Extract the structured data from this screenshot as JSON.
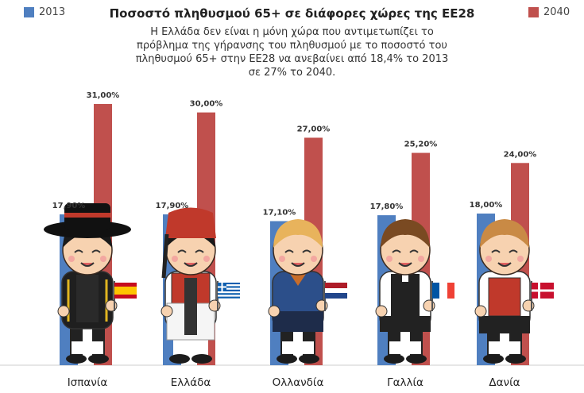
{
  "legend": {
    "series_a": "2013",
    "series_b": "2040"
  },
  "colors": {
    "series_a": "#4f7fc0",
    "series_b": "#c0504d",
    "baseline": "#cccccc"
  },
  "chart_data": {
    "type": "bar",
    "title": "Ποσοστό πληθυσμού 65+ σε διάφορες χώρες της ΕΕ28",
    "subtitle": "Η Ελλάδα δεν είναι η μόνη χώρα που αντιμετωπίζει το πρόβλημα της γήρανσης του πληθυσμού με το ποσοστό του πληθυσμού 65+ στην ΕΕ28 να ανεβαίνει από 18,4% το 2013 σε 27% το 2040.",
    "categories": [
      "Ισπανία",
      "Ελλάδα",
      "Ολλανδία",
      "Γαλλία",
      "Δανία"
    ],
    "series": [
      {
        "name": "2013",
        "values": [
          17.9,
          17.9,
          17.1,
          17.8,
          18.0
        ],
        "labels": [
          "17,90%",
          "17,90%",
          "17,10%",
          "17,80%",
          "18,00%"
        ]
      },
      {
        "name": "2040",
        "values": [
          31.0,
          30.0,
          27.0,
          25.2,
          24.0
        ],
        "labels": [
          "31,00%",
          "30,00%",
          "27,00%",
          "25,20%",
          "24,00%"
        ]
      }
    ],
    "legend_position": "top",
    "grid": false,
    "ylim": [
      0,
      31
    ]
  }
}
